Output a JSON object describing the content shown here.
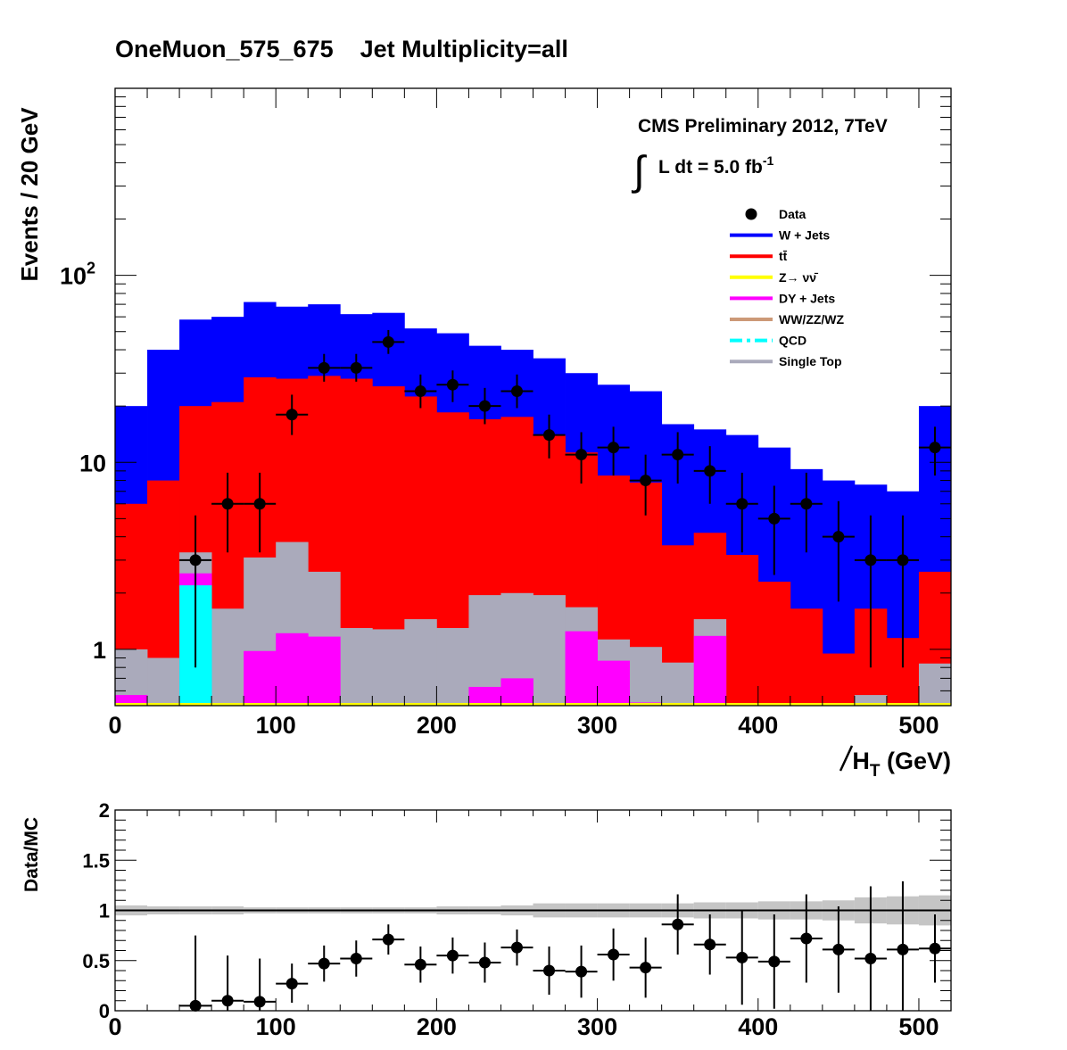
{
  "title": "OneMuon_575_675    Jet Multiplicity=all",
  "cms_label": "CMS Preliminary 2012, 7TeV",
  "lumi_text": "L dt = 5.0 fb",
  "lumi_exp": "-1",
  "colors": {
    "wjets": "#0000ff",
    "ttbar": "#ff0000",
    "zinv": "#ffff00",
    "dy": "#ff00ff",
    "diboson": "#cc9977",
    "qcd": "#00ffff",
    "singletop": "#aaaabb",
    "ratio_band": "#bbbbbb"
  },
  "chart_data": [
    {
      "type": "bar",
      "stacked": true,
      "log_scale": true,
      "xlabel": "H̸T (GeV)",
      "xlabel_main": "H",
      "xlabel_sub": "T",
      "xlabel_unit": " (GeV)",
      "ylabel": "Events / 20 GeV",
      "xlim": [
        0,
        520
      ],
      "ylim": [
        0.5,
        1000
      ],
      "x_ticks": [
        "0",
        "100",
        "200",
        "300",
        "400",
        "500"
      ],
      "y_ticks": [
        {
          "base": "1",
          "exp": ""
        },
        {
          "base": "10",
          "exp": ""
        },
        {
          "base": "10",
          "exp": "2"
        }
      ],
      "bin_edges": [
        0,
        20,
        40,
        60,
        80,
        100,
        120,
        140,
        160,
        180,
        200,
        220,
        240,
        260,
        280,
        300,
        320,
        340,
        360,
        380,
        400,
        420,
        440,
        460,
        480,
        500,
        520
      ],
      "legend_position": "top-right",
      "legend": [
        {
          "key": "data",
          "label": "Data"
        },
        {
          "key": "wjets",
          "label": "W + Jets"
        },
        {
          "key": "ttbar",
          "label": "tt̄"
        },
        {
          "key": "zinv",
          "label": "Z→ νν̄"
        },
        {
          "key": "dy",
          "label": "DY + Jets"
        },
        {
          "key": "diboson",
          "label": "WW/ZZ/WZ"
        },
        {
          "key": "qcd",
          "label": "QCD"
        },
        {
          "key": "singletop",
          "label": "Single Top"
        }
      ],
      "stack_cumulative": [
        {
          "key": "wjets",
          "label": "W + Jets",
          "values": [
            20,
            40,
            58,
            60,
            72,
            68,
            70,
            62,
            63,
            52,
            49,
            42,
            40,
            36,
            30,
            26,
            24,
            16,
            15,
            14,
            12,
            9.2,
            8,
            7.6,
            7,
            20
          ]
        },
        {
          "key": "ttbar",
          "label": "tt̄",
          "values": [
            6,
            8,
            20,
            21,
            28.5,
            28,
            29,
            28,
            25.5,
            22.5,
            18.5,
            17,
            17.5,
            14,
            11.3,
            8.5,
            7.8,
            3.6,
            4.2,
            3.2,
            2.3,
            1.65,
            0.95,
            1.65,
            1.15,
            2.6
          ]
        },
        {
          "key": "singletop",
          "label": "Single Top",
          "values": [
            1.0,
            0.9,
            3.3,
            1.65,
            3.1,
            3.75,
            2.6,
            1.3,
            1.28,
            1.45,
            1.3,
            1.95,
            2.0,
            1.95,
            1.68,
            1.13,
            1.03,
            0.85,
            1.45,
            0.5,
            0.5,
            0.5,
            0.5,
            0.57,
            0.5,
            0.84
          ]
        },
        {
          "key": "dy",
          "label": "DY + Jets",
          "values": [
            0.57,
            0,
            2.55,
            0,
            0.98,
            1.22,
            1.17,
            0,
            0,
            0,
            0,
            0.63,
            0.7,
            0,
            1.25,
            0.87,
            0.52,
            0,
            1.18,
            0,
            0,
            0,
            0,
            0,
            0,
            0
          ]
        },
        {
          "key": "qcd",
          "label": "QCD",
          "values": [
            0,
            0,
            2.2,
            0,
            0,
            0,
            0,
            0,
            0,
            0,
            0,
            0,
            0,
            0,
            0,
            0,
            0,
            0,
            0,
            0,
            0,
            0,
            0,
            0,
            0,
            0
          ]
        }
      ],
      "data_points": [
        {
          "x": 50,
          "y": 3,
          "lo": 0.8,
          "hi": 5.2
        },
        {
          "x": 70,
          "y": 6,
          "lo": 3.3,
          "hi": 8.8
        },
        {
          "x": 90,
          "y": 6,
          "lo": 3.3,
          "hi": 8.8
        },
        {
          "x": 110,
          "y": 18,
          "lo": 14,
          "hi": 23
        },
        {
          "x": 130,
          "y": 32,
          "lo": 27,
          "hi": 38
        },
        {
          "x": 150,
          "y": 32,
          "lo": 27,
          "hi": 38
        },
        {
          "x": 170,
          "y": 44,
          "lo": 38,
          "hi": 51
        },
        {
          "x": 190,
          "y": 24,
          "lo": 19.5,
          "hi": 29.5
        },
        {
          "x": 210,
          "y": 26,
          "lo": 21,
          "hi": 31
        },
        {
          "x": 230,
          "y": 20,
          "lo": 16,
          "hi": 25
        },
        {
          "x": 250,
          "y": 24,
          "lo": 19.5,
          "hi": 29.5
        },
        {
          "x": 270,
          "y": 14,
          "lo": 10.5,
          "hi": 18
        },
        {
          "x": 290,
          "y": 11,
          "lo": 7.7,
          "hi": 14.5
        },
        {
          "x": 310,
          "y": 12,
          "lo": 8.5,
          "hi": 15.5
        },
        {
          "x": 330,
          "y": 8,
          "lo": 5.2,
          "hi": 11
        },
        {
          "x": 350,
          "y": 11,
          "lo": 7.7,
          "hi": 14.5
        },
        {
          "x": 370,
          "y": 9,
          "lo": 6,
          "hi": 12.2
        },
        {
          "x": 390,
          "y": 6,
          "lo": 3.3,
          "hi": 8.8
        },
        {
          "x": 410,
          "y": 5,
          "lo": 2.5,
          "hi": 7.5
        },
        {
          "x": 430,
          "y": 6,
          "lo": 3.3,
          "hi": 8.8
        },
        {
          "x": 450,
          "y": 4,
          "lo": 1.8,
          "hi": 6.2
        },
        {
          "x": 470,
          "y": 3,
          "lo": 0.8,
          "hi": 5.2
        },
        {
          "x": 490,
          "y": 3,
          "lo": 0.8,
          "hi": 5.2
        },
        {
          "x": 510,
          "y": 12,
          "lo": 8.5,
          "hi": 15.5
        }
      ]
    },
    {
      "type": "scatter",
      "ylabel": "Data/MC",
      "xlim": [
        0,
        520
      ],
      "ylim": [
        0,
        2
      ],
      "x_ticks": [
        "0",
        "100",
        "200",
        "300",
        "400",
        "500"
      ],
      "y_ticks": [
        "0",
        "0.5",
        "1",
        "1.5",
        "2"
      ],
      "reference_line": 1,
      "band_halfwidth": [
        0.05,
        0.04,
        0.04,
        0.04,
        0.03,
        0.03,
        0.03,
        0.03,
        0.03,
        0.03,
        0.04,
        0.04,
        0.05,
        0.07,
        0.07,
        0.07,
        0.07,
        0.07,
        0.08,
        0.08,
        0.09,
        0.09,
        0.1,
        0.13,
        0.14,
        0.15
      ],
      "points": [
        {
          "x": 50,
          "y": 0.05,
          "lo": 0.0,
          "hi": 0.75
        },
        {
          "x": 70,
          "y": 0.1,
          "lo": 0.0,
          "hi": 0.55
        },
        {
          "x": 90,
          "y": 0.09,
          "lo": 0.0,
          "hi": 0.52
        },
        {
          "x": 110,
          "y": 0.27,
          "lo": 0.08,
          "hi": 0.47
        },
        {
          "x": 130,
          "y": 0.47,
          "lo": 0.29,
          "hi": 0.65
        },
        {
          "x": 150,
          "y": 0.52,
          "lo": 0.34,
          "hi": 0.7
        },
        {
          "x": 170,
          "y": 0.71,
          "lo": 0.56,
          "hi": 0.86
        },
        {
          "x": 190,
          "y": 0.46,
          "lo": 0.28,
          "hi": 0.64
        },
        {
          "x": 210,
          "y": 0.55,
          "lo": 0.37,
          "hi": 0.73
        },
        {
          "x": 230,
          "y": 0.48,
          "lo": 0.28,
          "hi": 0.68
        },
        {
          "x": 250,
          "y": 0.63,
          "lo": 0.45,
          "hi": 0.81
        },
        {
          "x": 270,
          "y": 0.4,
          "lo": 0.16,
          "hi": 0.64
        },
        {
          "x": 290,
          "y": 0.39,
          "lo": 0.13,
          "hi": 0.65
        },
        {
          "x": 310,
          "y": 0.56,
          "lo": 0.3,
          "hi": 0.82
        },
        {
          "x": 330,
          "y": 0.43,
          "lo": 0.13,
          "hi": 0.73
        },
        {
          "x": 350,
          "y": 0.86,
          "lo": 0.56,
          "hi": 1.16
        },
        {
          "x": 370,
          "y": 0.66,
          "lo": 0.36,
          "hi": 0.96
        },
        {
          "x": 390,
          "y": 0.53,
          "lo": 0.06,
          "hi": 1.0
        },
        {
          "x": 410,
          "y": 0.49,
          "lo": 0.02,
          "hi": 0.96
        },
        {
          "x": 430,
          "y": 0.72,
          "lo": 0.28,
          "hi": 1.16
        },
        {
          "x": 450,
          "y": 0.61,
          "lo": 0.18,
          "hi": 1.04
        },
        {
          "x": 470,
          "y": 0.52,
          "lo": 0.0,
          "hi": 1.24
        },
        {
          "x": 490,
          "y": 0.61,
          "lo": 0.0,
          "hi": 1.29
        },
        {
          "x": 510,
          "y": 0.62,
          "lo": 0.28,
          "hi": 0.96
        }
      ]
    }
  ]
}
